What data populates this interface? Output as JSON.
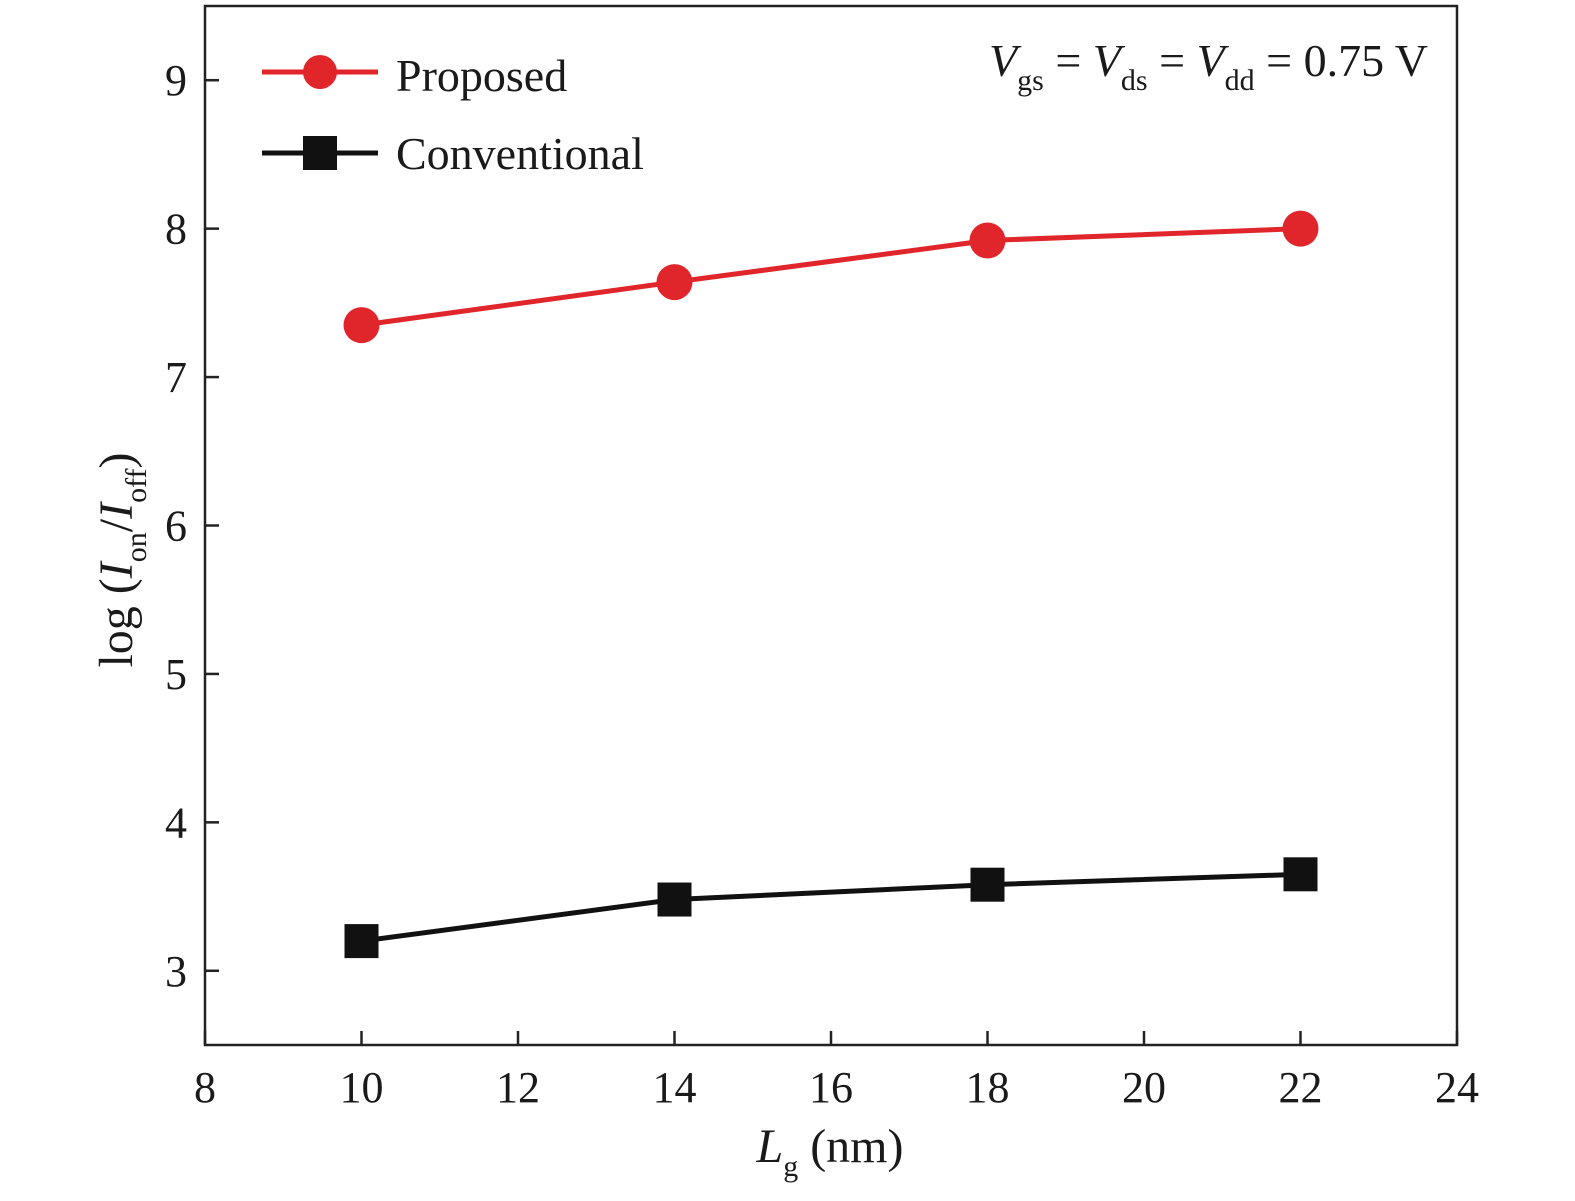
{
  "chart_data": {
    "type": "line",
    "title": "",
    "x": [
      10,
      14,
      18,
      22
    ],
    "series": [
      {
        "name": "Proposed",
        "values": [
          7.35,
          7.64,
          7.92,
          8.0
        ],
        "color": "#e0262b",
        "marker": "circle"
      },
      {
        "name": "Conventional",
        "values": [
          3.2,
          3.48,
          3.58,
          3.65
        ],
        "color": "#111111",
        "marker": "square"
      }
    ],
    "xlim": [
      8,
      24
    ],
    "ylim": [
      2.5,
      9.5
    ],
    "xticks": [
      8,
      10,
      12,
      14,
      16,
      18,
      20,
      22,
      24
    ],
    "yticks": [
      3,
      4,
      5,
      6,
      7,
      8,
      9
    ],
    "xlabel": {
      "main": "L",
      "sub": "g",
      "rest": " (nm)"
    },
    "ylabel": {
      "prefix": "log (",
      "i1": "I",
      "s1": "on",
      "slash": "/",
      "i2": "I",
      "s2": "off",
      "suffix": ")"
    },
    "annotation": {
      "v1": "V",
      "s1": "gs",
      "eq1": " = ",
      "v2": "V",
      "s2": "ds",
      "eq2": " = ",
      "v3": "V",
      "s3": "dd",
      "rest": " = 0.75 V"
    },
    "legend_position": "top-left",
    "grid": false
  }
}
